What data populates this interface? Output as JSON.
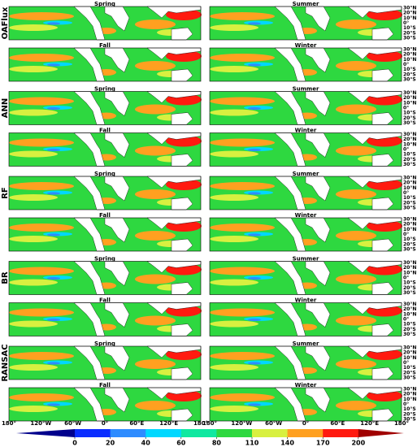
{
  "rows": [
    {
      "label": "OAFlux",
      "panels": [
        "Spring",
        "Summer",
        "Fall",
        "Winter"
      ]
    },
    {
      "label": "ANN",
      "panels": [
        "Spring",
        "Summer",
        "Fall",
        "Winter"
      ]
    },
    {
      "label": "RF",
      "panels": [
        "Spring",
        "Summer",
        "Fall",
        "Winter"
      ]
    },
    {
      "label": "BR",
      "panels": [
        "Spring",
        "Summer",
        "Fall",
        "Winter"
      ]
    },
    {
      "label": "RANSAC",
      "panels": [
        "Spring",
        "Summer",
        "Fall",
        "Winter"
      ]
    }
  ],
  "lat_labels": [
    "30°N",
    "20°N",
    "10°N",
    "0°",
    "10°S",
    "20°S",
    "30°S"
  ],
  "lon_labels": [
    "180°",
    "120°W",
    "60°W",
    "0°",
    "60°E",
    "120°E",
    "180°"
  ],
  "colorbar": {
    "ticks": [
      0,
      20,
      40,
      60,
      80,
      110,
      140,
      170,
      200
    ],
    "colors": [
      "#00008c",
      "#0a2cff",
      "#2e8cff",
      "#00d8ff",
      "#10e8a0",
      "#2ed840",
      "#d8f040",
      "#ffa020",
      "#ff1a10",
      "#a00000"
    ]
  }
}
